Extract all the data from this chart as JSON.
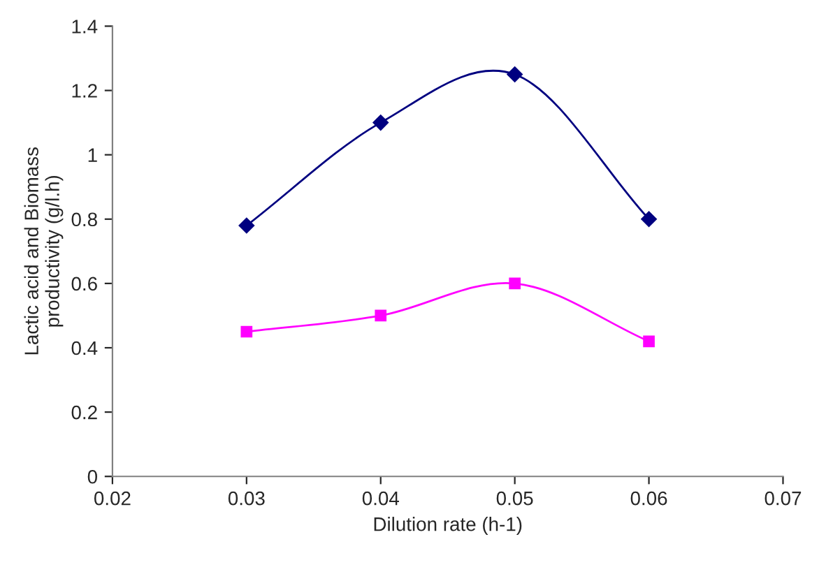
{
  "chart_data": {
    "type": "line",
    "xlabel": "Dilution rate (h-1)",
    "ylabel": "Lactic acid and Biomass\nproductivity (g/l.h)",
    "x": [
      0.03,
      0.04,
      0.05,
      0.06
    ],
    "series": [
      {
        "color": "#000080",
        "marker": "diamond",
        "values": [
          0.78,
          1.1,
          1.25,
          0.8
        ]
      },
      {
        "color": "#ff00ff",
        "marker": "square",
        "values": [
          0.45,
          0.5,
          0.6,
          0.42
        ]
      }
    ],
    "xlim": [
      0.02,
      0.07
    ],
    "xticks": [
      {
        "value": 0.02,
        "label": "0.02"
      },
      {
        "value": 0.03,
        "label": "0.03"
      },
      {
        "value": 0.04,
        "label": "0.04"
      },
      {
        "value": 0.05,
        "label": "0.05"
      },
      {
        "value": 0.06,
        "label": "0.06"
      },
      {
        "value": 0.07,
        "label": "0.07"
      }
    ],
    "ylim": [
      0,
      1.4
    ],
    "yticks": [
      0,
      0.2,
      0.4,
      0.6,
      0.8,
      1,
      1.2,
      1.4
    ],
    "grid": false,
    "legend": false,
    "line_style": "solid"
  }
}
